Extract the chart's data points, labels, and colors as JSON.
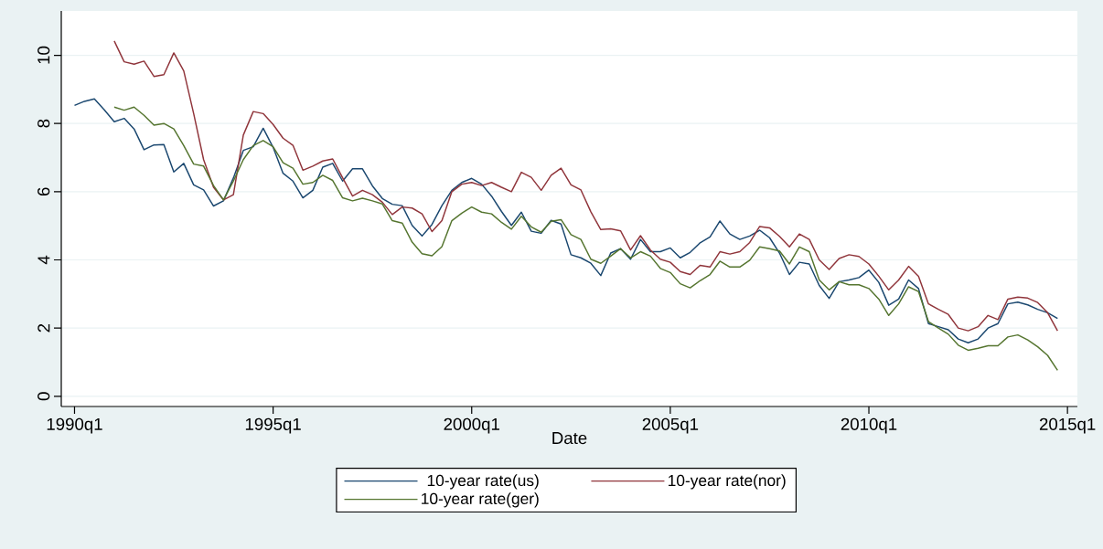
{
  "chart_data": {
    "type": "line",
    "xlabel": "Date",
    "x": [
      "1990-01",
      "1990-04",
      "1990-07",
      "1990-10",
      "1991-01",
      "1991-04",
      "1991-07",
      "1991-10",
      "1992-01",
      "1992-04",
      "1992-07",
      "1992-10",
      "1993-01",
      "1993-04",
      "1993-07",
      "1993-10",
      "1994-01",
      "1994-04",
      "1994-07",
      "1994-10",
      "1995-01",
      "1995-04",
      "1995-07",
      "1995-10",
      "1996-01",
      "1996-04",
      "1996-07",
      "1996-10",
      "1997-01",
      "1997-04",
      "1997-07",
      "1997-10",
      "1998-01",
      "1998-04",
      "1998-07",
      "1998-10",
      "1999-01",
      "1999-04",
      "1999-07",
      "1999-10",
      "2000-01",
      "2000-04",
      "2000-07",
      "2000-10",
      "2001-01",
      "2001-04",
      "2001-07",
      "2001-10",
      "2002-01",
      "2002-04",
      "2002-07",
      "2002-10",
      "2003-01",
      "2003-04",
      "2003-07",
      "2003-10",
      "2004-01",
      "2004-04",
      "2004-07",
      "2004-10",
      "2005-01",
      "2005-04",
      "2005-07",
      "2005-10",
      "2006-01",
      "2006-04",
      "2006-07",
      "2006-10",
      "2007-01",
      "2007-04",
      "2007-07",
      "2007-10",
      "2008-01",
      "2008-04",
      "2008-07",
      "2008-10",
      "2009-01",
      "2009-04",
      "2009-07",
      "2009-10",
      "2010-01",
      "2010-04",
      "2010-07",
      "2010-10",
      "2011-01",
      "2011-04",
      "2011-07",
      "2011-10",
      "2012-01",
      "2012-04",
      "2012-07",
      "2012-10",
      "2013-01",
      "2013-04",
      "2013-07",
      "2013-10",
      "2014-01",
      "2014-04",
      "2014-07",
      "2014-10"
    ],
    "series": [
      {
        "name": "10-year rate(us)",
        "color": "#1a476f",
        "values": [
          8.53,
          8.65,
          8.72,
          8.4,
          8.05,
          8.15,
          7.84,
          7.23,
          7.37,
          7.38,
          6.58,
          6.83,
          6.2,
          6.05,
          5.58,
          5.73,
          6.4,
          7.21,
          7.32,
          7.86,
          7.3,
          6.54,
          6.31,
          5.82,
          6.04,
          6.72,
          6.83,
          6.31,
          6.67,
          6.67,
          6.17,
          5.8,
          5.63,
          5.59,
          5.01,
          4.7,
          5.04,
          5.59,
          6.04,
          6.27,
          6.39,
          6.22,
          5.87,
          5.42,
          5.01,
          5.4,
          4.84,
          4.78,
          5.16,
          5.05,
          4.15,
          4.06,
          3.9,
          3.54,
          4.2,
          4.33,
          4.02,
          4.6,
          4.24,
          4.24,
          4.35,
          4.06,
          4.22,
          4.5,
          4.67,
          5.14,
          4.76,
          4.6,
          4.7,
          4.87,
          4.65,
          4.2,
          3.57,
          3.93,
          3.88,
          3.25,
          2.87,
          3.36,
          3.41,
          3.48,
          3.7,
          3.34,
          2.67,
          2.85,
          3.41,
          3.16,
          2.13,
          2.04,
          1.95,
          1.68,
          1.57,
          1.68,
          2.0,
          2.13,
          2.71,
          2.76,
          2.68,
          2.55,
          2.45,
          2.28
        ]
      },
      {
        "name": "10-year rate(nor)",
        "color": "#90353b",
        "values": [
          null,
          null,
          null,
          null,
          10.42,
          9.81,
          9.74,
          9.83,
          9.38,
          9.43,
          10.07,
          9.54,
          8.29,
          6.94,
          6.13,
          5.76,
          5.91,
          7.66,
          8.35,
          8.29,
          7.97,
          7.57,
          7.36,
          6.63,
          6.75,
          6.9,
          6.96,
          6.41,
          5.87,
          6.04,
          5.91,
          5.69,
          5.33,
          5.55,
          5.52,
          5.35,
          4.83,
          5.15,
          6.0,
          6.22,
          6.27,
          6.18,
          6.27,
          6.13,
          6.0,
          6.57,
          6.42,
          6.04,
          6.48,
          6.69,
          6.2,
          6.05,
          5.41,
          4.89,
          4.91,
          4.85,
          4.29,
          4.71,
          4.29,
          4.02,
          3.93,
          3.66,
          3.57,
          3.84,
          3.79,
          4.24,
          4.17,
          4.24,
          4.51,
          4.98,
          4.94,
          4.69,
          4.38,
          4.76,
          4.6,
          4.0,
          3.72,
          4.04,
          4.15,
          4.1,
          3.88,
          3.52,
          3.12,
          3.41,
          3.81,
          3.52,
          2.71,
          2.55,
          2.4,
          2.0,
          1.92,
          2.04,
          2.37,
          2.25,
          2.85,
          2.91,
          2.88,
          2.75,
          2.45,
          1.92
        ]
      },
      {
        "name": "10-year rate(ger)",
        "color": "#55752f",
        "values": [
          null,
          null,
          null,
          null,
          8.48,
          8.39,
          8.48,
          8.24,
          7.95,
          8.0,
          7.84,
          7.35,
          6.81,
          6.75,
          6.18,
          5.76,
          6.31,
          6.94,
          7.35,
          7.5,
          7.32,
          6.85,
          6.69,
          6.22,
          6.27,
          6.48,
          6.33,
          5.82,
          5.73,
          5.81,
          5.73,
          5.64,
          5.15,
          5.08,
          4.52,
          4.18,
          4.12,
          4.39,
          5.15,
          5.37,
          5.55,
          5.4,
          5.35,
          5.1,
          4.9,
          5.28,
          4.97,
          4.81,
          5.13,
          5.18,
          4.74,
          4.6,
          4.02,
          3.9,
          4.11,
          4.33,
          4.06,
          4.24,
          4.11,
          3.75,
          3.63,
          3.3,
          3.18,
          3.39,
          3.57,
          3.96,
          3.79,
          3.79,
          3.99,
          4.38,
          4.33,
          4.26,
          3.88,
          4.38,
          4.24,
          3.41,
          3.12,
          3.36,
          3.27,
          3.27,
          3.16,
          2.85,
          2.37,
          2.71,
          3.21,
          3.07,
          2.19,
          2.0,
          1.82,
          1.5,
          1.35,
          1.41,
          1.48,
          1.48,
          1.74,
          1.8,
          1.65,
          1.45,
          1.2,
          0.76
        ]
      }
    ],
    "xlim": [
      "1989-09",
      "2015-04"
    ],
    "xticks": [
      {
        "value": "1990-01",
        "label": "1990q1"
      },
      {
        "value": "1995-01",
        "label": "1995q1"
      },
      {
        "value": "2000-01",
        "label": "2000q1"
      },
      {
        "value": "2005-01",
        "label": "2005q1"
      },
      {
        "value": "2010-01",
        "label": "2010q1"
      },
      {
        "value": "2015-01",
        "label": "2015q1"
      }
    ],
    "ylim": [
      -0.3,
      11.3
    ],
    "yticks": [
      0,
      2,
      4,
      6,
      8,
      10
    ],
    "grid": "y",
    "legend": "bottom",
    "marker": "none",
    "line_style": "solid"
  }
}
